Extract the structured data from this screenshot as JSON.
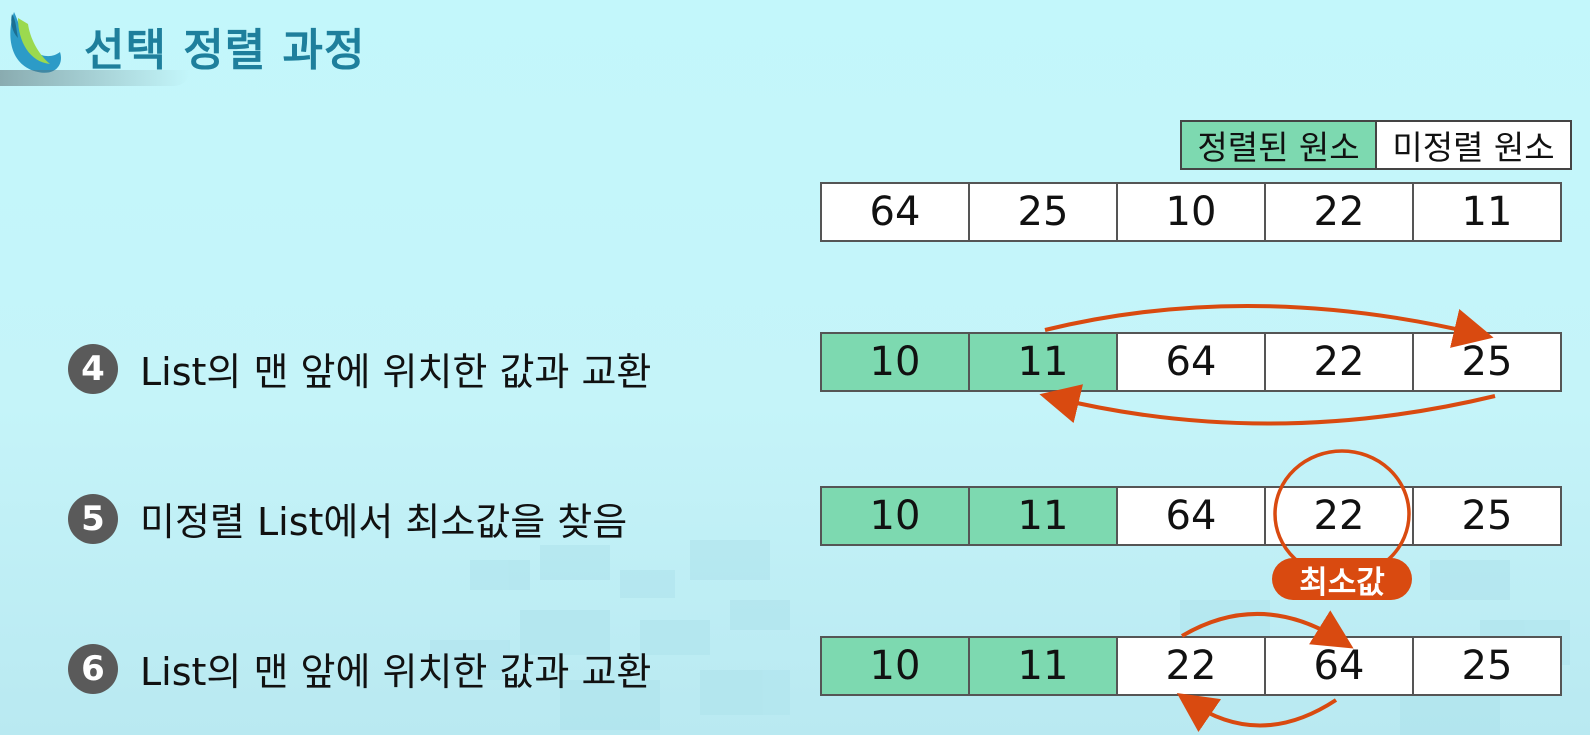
{
  "title": "선택 정렬 과정",
  "legend": {
    "sorted": "정렬된 원소",
    "unsorted": "미정렬 원소"
  },
  "initial_row": [
    "64",
    "25",
    "10",
    "22",
    "11"
  ],
  "steps": [
    {
      "num": "4",
      "text": "List의 맨 앞에 위치한 값과 교환",
      "cells": [
        "10",
        "11",
        "64",
        "22",
        "25"
      ],
      "sorted_count": 2
    },
    {
      "num": "5",
      "text": "미정렬 List에서 최소값을 찾음",
      "cells": [
        "10",
        "11",
        "64",
        "22",
        "25"
      ],
      "sorted_count": 2
    },
    {
      "num": "6",
      "text": "List의 맨 앞에 위치한 값과 교환",
      "cells": [
        "10",
        "11",
        "22",
        "64",
        "25"
      ],
      "sorted_count": 2
    }
  ],
  "min_label": "최소값",
  "colors": {
    "sorted": "#7dd9b0",
    "accent": "#d94a10",
    "title": "#1e7f9c"
  }
}
